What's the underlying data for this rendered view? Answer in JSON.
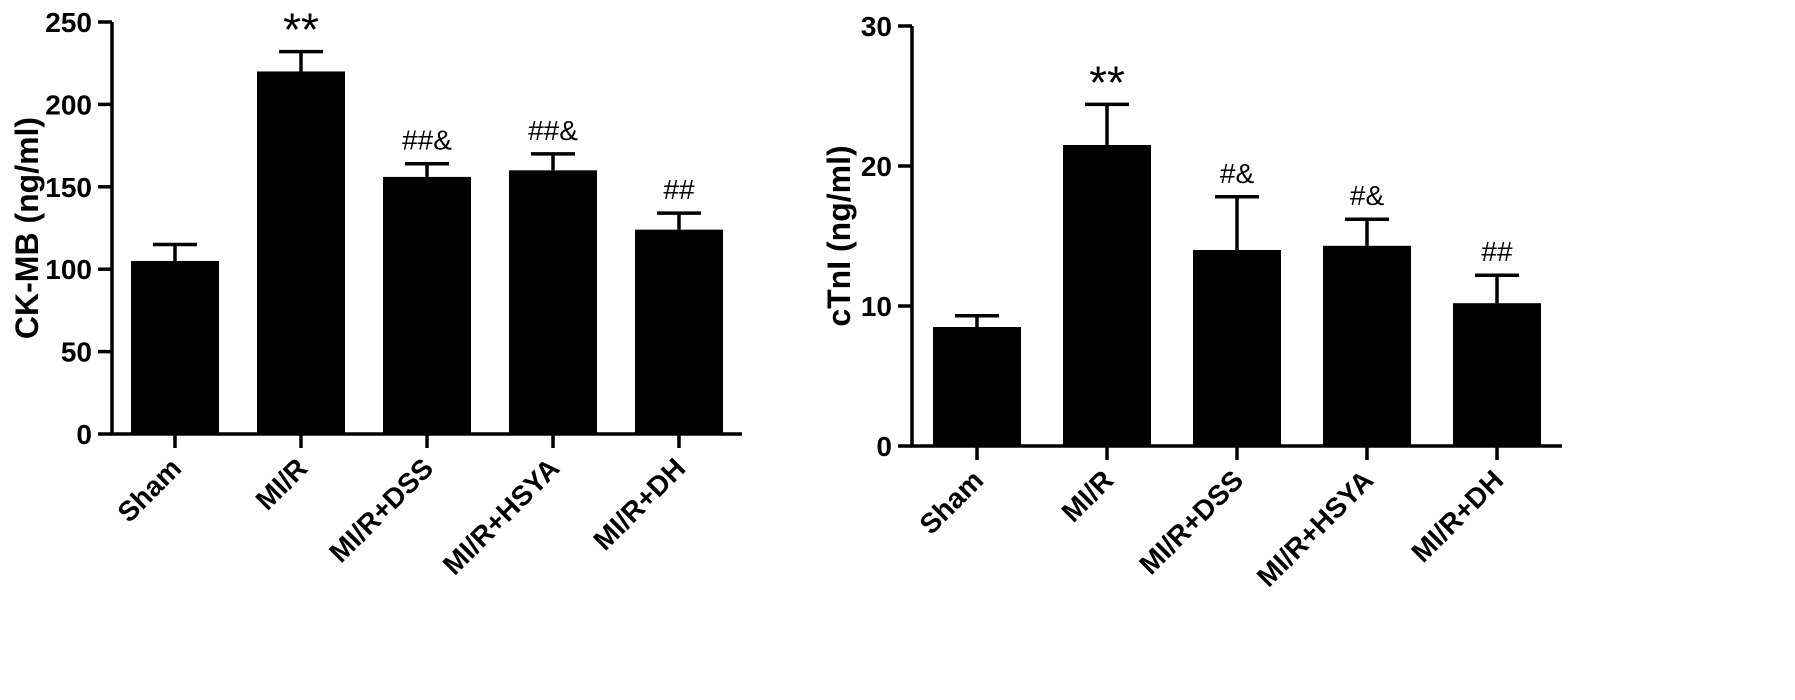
{
  "chart_data": [
    {
      "type": "bar",
      "categories": [
        "Sham",
        "MI/R",
        "MI/R+DSS",
        "MI/R+HSYA",
        "MI/R+DH"
      ],
      "series": [
        {
          "values": [
            105,
            220,
            156,
            160,
            124
          ],
          "errors": [
            10,
            12,
            8,
            10,
            10
          ]
        }
      ],
      "annotations": [
        "",
        "**",
        "##&",
        "##&",
        "##"
      ],
      "ylabel": "CK-MB (ng/ml)",
      "xlabel": "",
      "ylim": [
        0,
        250
      ],
      "yticks": [
        0,
        50,
        100,
        150,
        200,
        250
      ],
      "bar_color": "#000000",
      "grid": false
    },
    {
      "type": "bar",
      "categories": [
        "Sham",
        "MI/R",
        "MI/R+DSS",
        "MI/R+HSYA",
        "MI/R+DH"
      ],
      "series": [
        {
          "values": [
            8.5,
            21.5,
            14,
            14.3,
            10.2
          ],
          "errors": [
            0.8,
            2.9,
            3.8,
            1.9,
            2.0
          ]
        }
      ],
      "annotations": [
        "",
        "**",
        "#&",
        "#&",
        "##"
      ],
      "ylabel": "cTnI (ng/ml)",
      "xlabel": "",
      "ylim": [
        0,
        30
      ],
      "yticks": [
        0,
        10,
        20,
        30
      ],
      "bar_color": "#000000",
      "grid": false
    }
  ]
}
